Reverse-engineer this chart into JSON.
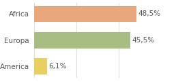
{
  "categories": [
    "Africa",
    "Europa",
    "America"
  ],
  "values": [
    48.5,
    45.5,
    6.1
  ],
  "labels": [
    "48,5%",
    "45,5%",
    "6,1%"
  ],
  "bar_colors": [
    "#e8a87c",
    "#a8bd82",
    "#e8d060"
  ],
  "background_color": "#ffffff",
  "xlim": [
    0,
    58
  ],
  "bar_height": 0.62,
  "label_fontsize": 7.5,
  "tick_fontsize": 7.5,
  "grid_color": "#e0e0e0",
  "text_color": "#555555"
}
